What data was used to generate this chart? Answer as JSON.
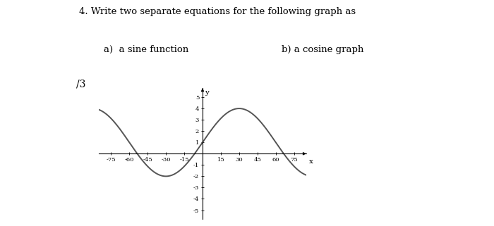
{
  "title_line1": "4. Write two separate equations for the following graph as",
  "title_line2a": "a)  a sine function",
  "title_line2b": "b) a cosine graph",
  "question_num": "/3",
  "amplitude": 3,
  "vertical_shift": 1,
  "period_deg": 120,
  "phase_shift_deg": 0,
  "x_min": -85,
  "x_max": 85,
  "y_min": -5.8,
  "y_max": 5.8,
  "x_ticks": [
    -75,
    -60,
    -45,
    -30,
    -15,
    15,
    30,
    45,
    60,
    75
  ],
  "y_ticks": [
    -5,
    -4,
    -3,
    -2,
    -1,
    1,
    2,
    3,
    4,
    5
  ],
  "x_label": "x",
  "y_label": "y",
  "line_color": "#555555",
  "line_width": 1.4,
  "background_color": "#ffffff",
  "text_color": "#000000",
  "font_family": "serif"
}
